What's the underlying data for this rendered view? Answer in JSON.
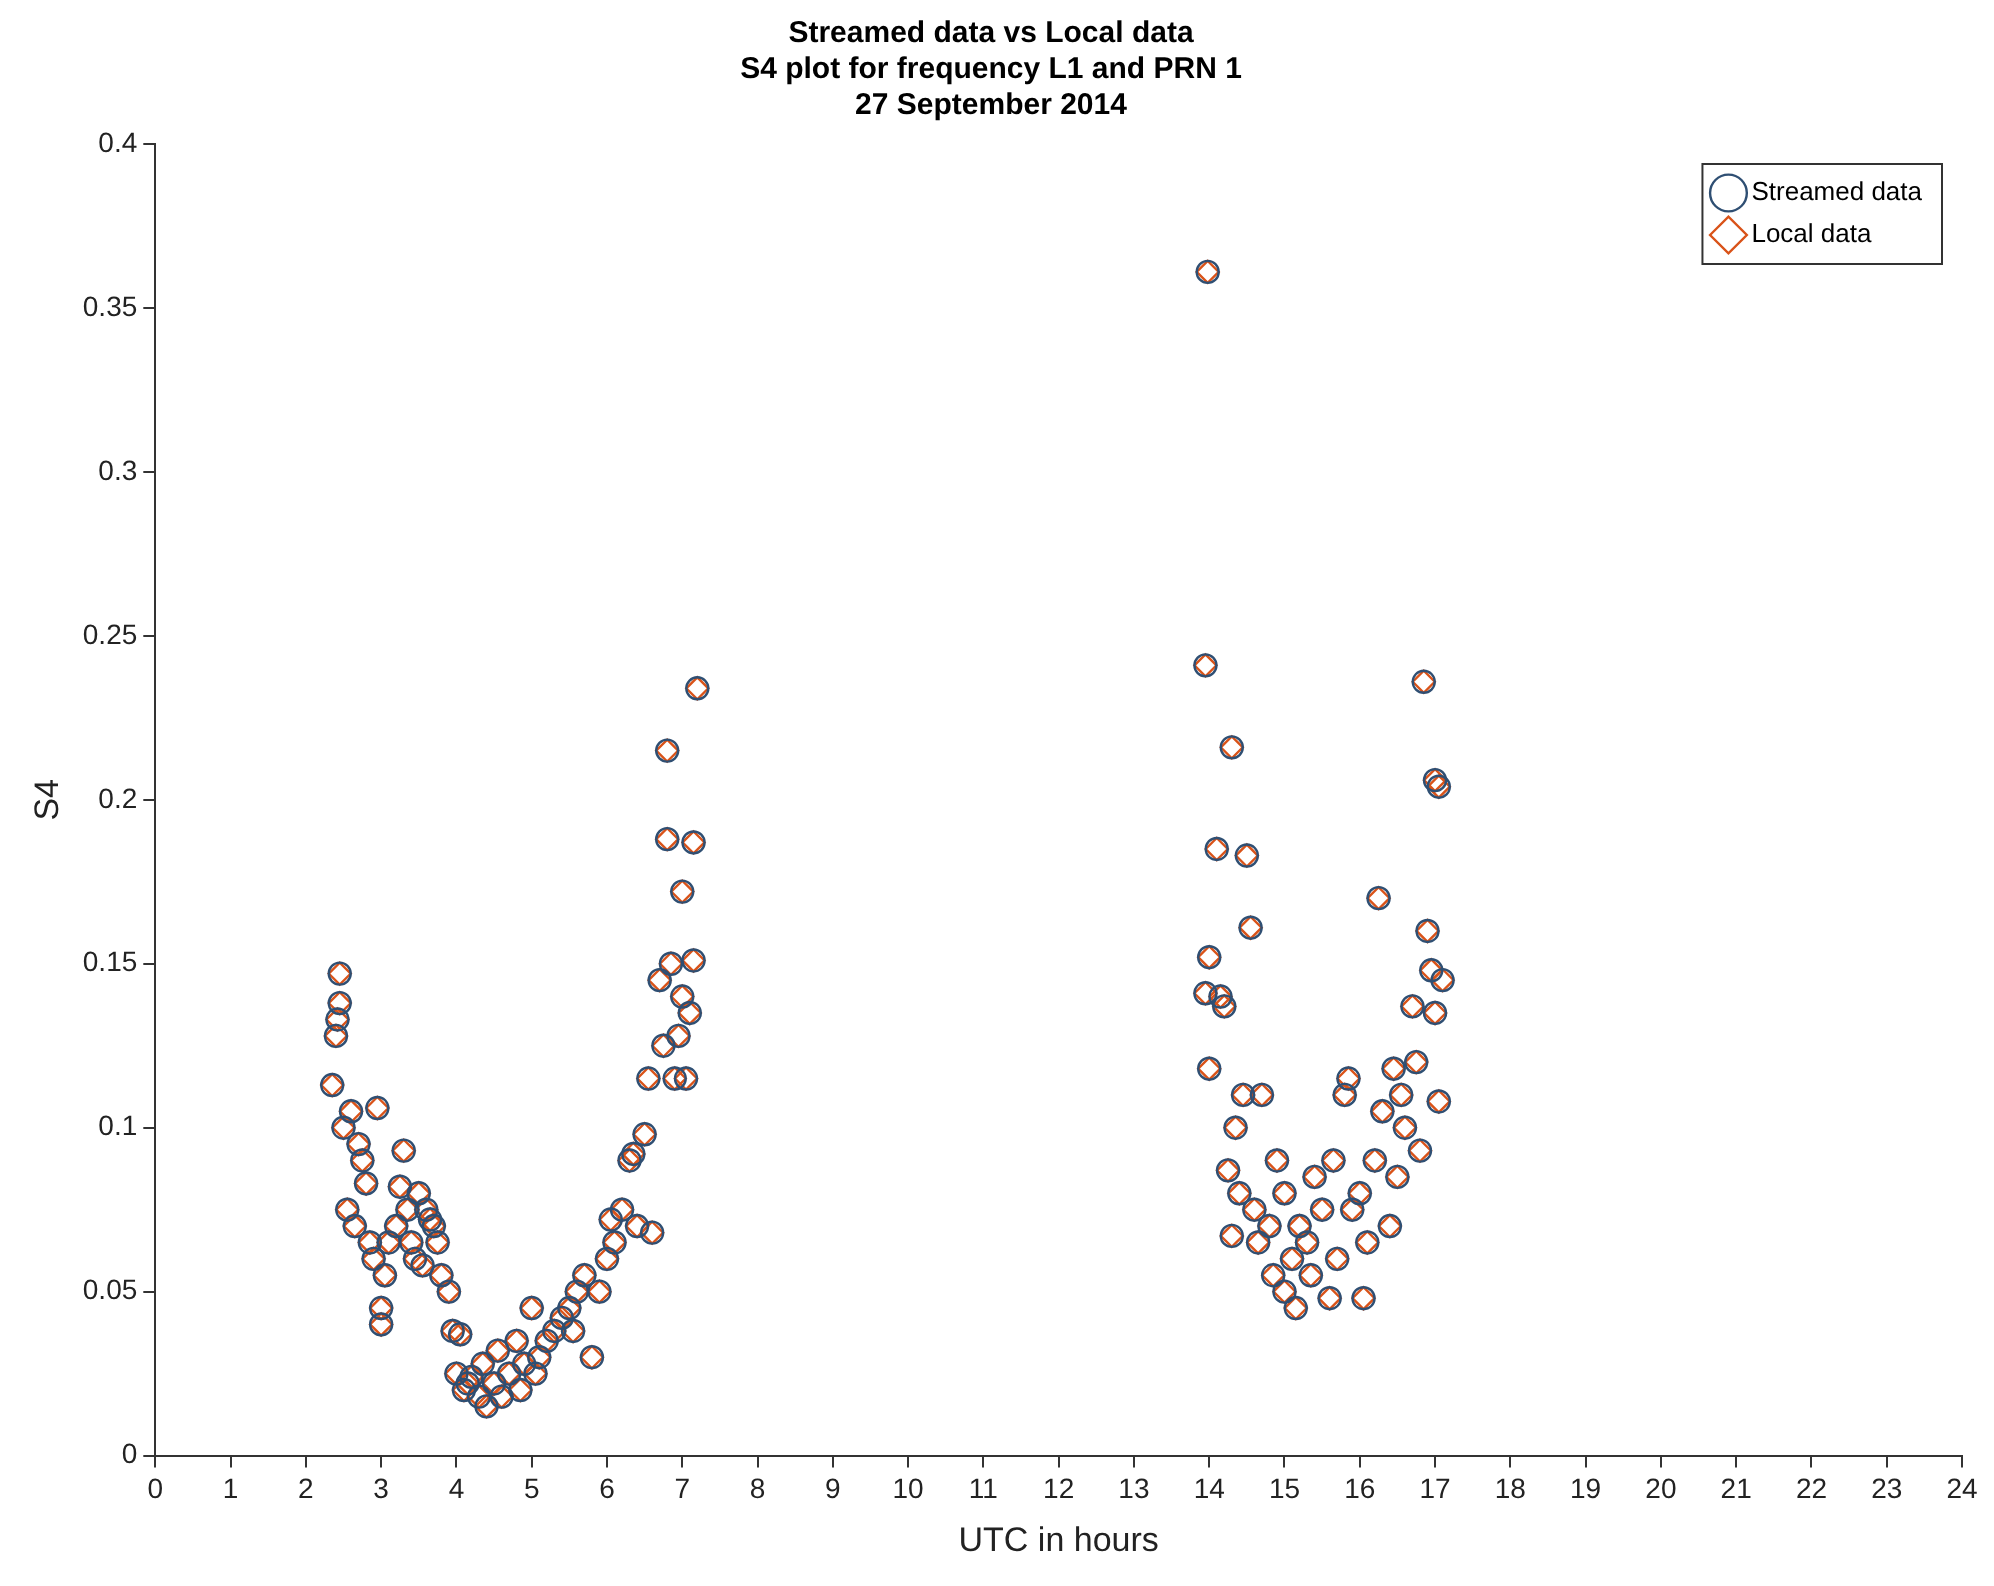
{
  "chart_data": {
    "type": "scatter",
    "title": "Streamed data vs Local data\nS4 plot for frequency L1 and PRN 1\n27 September 2014",
    "xlabel": "UTC in hours",
    "ylabel": "S4",
    "xlim": [
      0,
      24
    ],
    "xticks": [
      0,
      1,
      2,
      3,
      4,
      5,
      6,
      7,
      8,
      9,
      10,
      11,
      12,
      13,
      14,
      15,
      16,
      17,
      18,
      19,
      20,
      21,
      22,
      23,
      24
    ],
    "ylim": [
      0,
      0.4
    ],
    "yticks": [
      0,
      0.05,
      0.1,
      0.15,
      0.2,
      0.25,
      0.3,
      0.35,
      0.4
    ],
    "grid": false,
    "legend": "top right",
    "x": [
      2.35,
      2.4,
      2.42,
      2.45,
      2.45,
      2.5,
      2.55,
      2.6,
      2.65,
      2.7,
      2.75,
      2.8,
      2.85,
      2.9,
      2.95,
      3.0,
      3.0,
      3.05,
      3.1,
      3.2,
      3.25,
      3.3,
      3.35,
      3.4,
      3.45,
      3.5,
      3.55,
      3.6,
      3.65,
      3.7,
      3.75,
      3.8,
      3.9,
      3.95,
      4.0,
      4.05,
      4.1,
      4.15,
      4.2,
      4.3,
      4.35,
      4.4,
      4.5,
      4.55,
      4.6,
      4.7,
      4.8,
      4.85,
      4.9,
      5.0,
      5.05,
      5.1,
      5.2,
      5.3,
      5.4,
      5.5,
      5.55,
      5.6,
      5.7,
      5.8,
      5.9,
      6.0,
      6.05,
      6.1,
      6.2,
      6.3,
      6.35,
      6.4,
      6.5,
      6.55,
      6.6,
      6.7,
      6.75,
      6.8,
      6.8,
      6.85,
      6.9,
      6.95,
      7.0,
      7.0,
      7.05,
      7.1,
      7.15,
      7.15,
      7.2,
      13.98,
      13.95,
      13.95,
      14.0,
      14.0,
      14.1,
      14.15,
      14.2,
      14.25,
      14.3,
      14.3,
      14.35,
      14.4,
      14.45,
      14.5,
      14.55,
      14.6,
      14.65,
      14.7,
      14.8,
      14.85,
      14.9,
      15.0,
      15.0,
      15.1,
      15.15,
      15.2,
      15.3,
      15.35,
      15.4,
      15.5,
      15.6,
      15.65,
      15.7,
      15.8,
      15.85,
      15.9,
      16.0,
      16.05,
      16.1,
      16.2,
      16.25,
      16.3,
      16.4,
      16.45,
      16.5,
      16.55,
      16.6,
      16.7,
      16.75,
      16.8,
      16.85,
      16.9,
      16.95,
      17.0,
      17.0,
      17.05,
      17.05,
      17.1
    ],
    "series": [
      {
        "name": "Streamed data",
        "color": "#2f4f73",
        "marker": "circle",
        "values": [
          0.113,
          0.128,
          0.133,
          0.138,
          0.147,
          0.1,
          0.075,
          0.105,
          0.07,
          0.095,
          0.09,
          0.083,
          0.065,
          0.06,
          0.106,
          0.045,
          0.04,
          0.055,
          0.065,
          0.07,
          0.082,
          0.093,
          0.075,
          0.065,
          0.06,
          0.08,
          0.058,
          0.075,
          0.072,
          0.07,
          0.065,
          0.055,
          0.05,
          0.038,
          0.025,
          0.037,
          0.02,
          0.022,
          0.024,
          0.018,
          0.028,
          0.015,
          0.022,
          0.032,
          0.018,
          0.025,
          0.035,
          0.02,
          0.028,
          0.045,
          0.025,
          0.03,
          0.035,
          0.038,
          0.042,
          0.045,
          0.038,
          0.05,
          0.055,
          0.03,
          0.05,
          0.06,
          0.072,
          0.065,
          0.075,
          0.09,
          0.092,
          0.07,
          0.098,
          0.115,
          0.068,
          0.145,
          0.125,
          0.188,
          0.215,
          0.15,
          0.115,
          0.128,
          0.14,
          0.172,
          0.115,
          0.135,
          0.187,
          0.151,
          0.234,
          0.361,
          0.241,
          0.141,
          0.152,
          0.118,
          0.185,
          0.14,
          0.137,
          0.087,
          0.216,
          0.067,
          0.1,
          0.08,
          0.11,
          0.183,
          0.161,
          0.075,
          0.065,
          0.11,
          0.07,
          0.055,
          0.09,
          0.08,
          0.05,
          0.06,
          0.045,
          0.07,
          0.065,
          0.055,
          0.085,
          0.075,
          0.048,
          0.09,
          0.06,
          0.11,
          0.115,
          0.075,
          0.08,
          0.048,
          0.065,
          0.09,
          0.17,
          0.105,
          0.07,
          0.118,
          0.085,
          0.11,
          0.1,
          0.137,
          0.12,
          0.093,
          0.236,
          0.16,
          0.148,
          0.206,
          0.135,
          0.108,
          0.204,
          0.145
        ]
      },
      {
        "name": "Local data",
        "color": "#d95319",
        "marker": "diamond",
        "values": [
          0.113,
          0.128,
          0.133,
          0.138,
          0.147,
          0.1,
          0.075,
          0.105,
          0.07,
          0.095,
          0.09,
          0.083,
          0.065,
          0.06,
          0.106,
          0.045,
          0.04,
          0.055,
          0.065,
          0.07,
          0.082,
          0.093,
          0.075,
          0.065,
          0.06,
          0.08,
          0.058,
          0.075,
          0.072,
          0.07,
          0.065,
          0.055,
          0.05,
          0.038,
          0.025,
          0.037,
          0.02,
          0.022,
          0.024,
          0.018,
          0.028,
          0.015,
          0.022,
          0.032,
          0.018,
          0.025,
          0.035,
          0.02,
          0.028,
          0.045,
          0.025,
          0.03,
          0.035,
          0.038,
          0.042,
          0.045,
          0.038,
          0.05,
          0.055,
          0.03,
          0.05,
          0.06,
          0.072,
          0.065,
          0.075,
          0.09,
          0.092,
          0.07,
          0.098,
          0.115,
          0.068,
          0.145,
          0.125,
          0.188,
          0.215,
          0.15,
          0.115,
          0.128,
          0.14,
          0.172,
          0.115,
          0.135,
          0.187,
          0.151,
          0.234,
          0.361,
          0.241,
          0.141,
          0.152,
          0.118,
          0.185,
          0.14,
          0.137,
          0.087,
          0.216,
          0.067,
          0.1,
          0.08,
          0.11,
          0.183,
          0.161,
          0.075,
          0.065,
          0.11,
          0.07,
          0.055,
          0.09,
          0.08,
          0.05,
          0.06,
          0.045,
          0.07,
          0.065,
          0.055,
          0.085,
          0.075,
          0.048,
          0.09,
          0.06,
          0.11,
          0.115,
          0.075,
          0.08,
          0.048,
          0.065,
          0.09,
          0.17,
          0.105,
          0.07,
          0.118,
          0.085,
          0.11,
          0.1,
          0.137,
          0.12,
          0.093,
          0.236,
          0.16,
          0.148,
          0.206,
          0.135,
          0.108,
          0.204,
          0.145
        ]
      }
    ]
  }
}
